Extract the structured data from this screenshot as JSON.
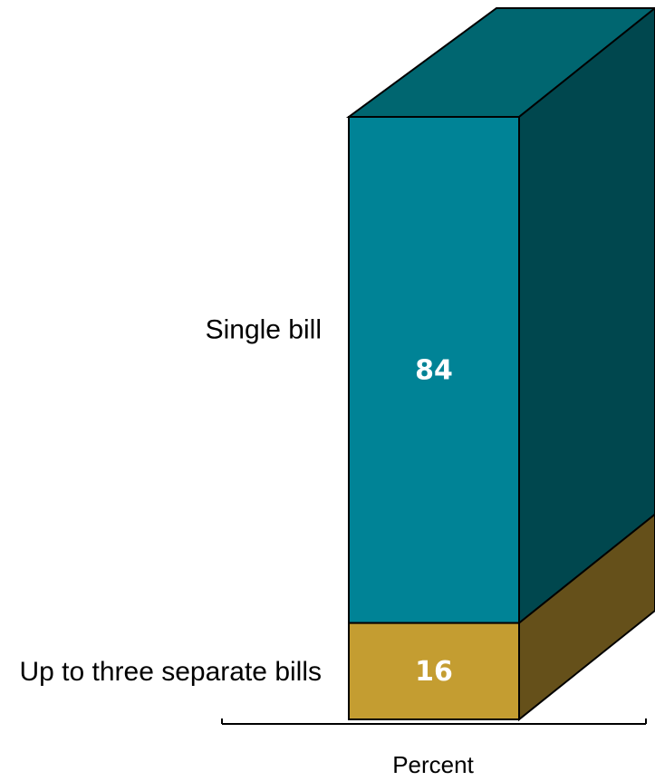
{
  "chart_data": {
    "type": "bar",
    "stacked": true,
    "three_d": true,
    "xlabel": "Percent",
    "segments": [
      {
        "name": "Up to three separate bills",
        "value": 16,
        "label": "16",
        "color_front": "#c49d31",
        "color_side": "#65501a"
      },
      {
        "name": "Single bill",
        "value": 84,
        "label": "84",
        "color_front": "#008396",
        "color_side": "#00474e",
        "color_top": "#006670"
      }
    ],
    "value_total": 100
  }
}
